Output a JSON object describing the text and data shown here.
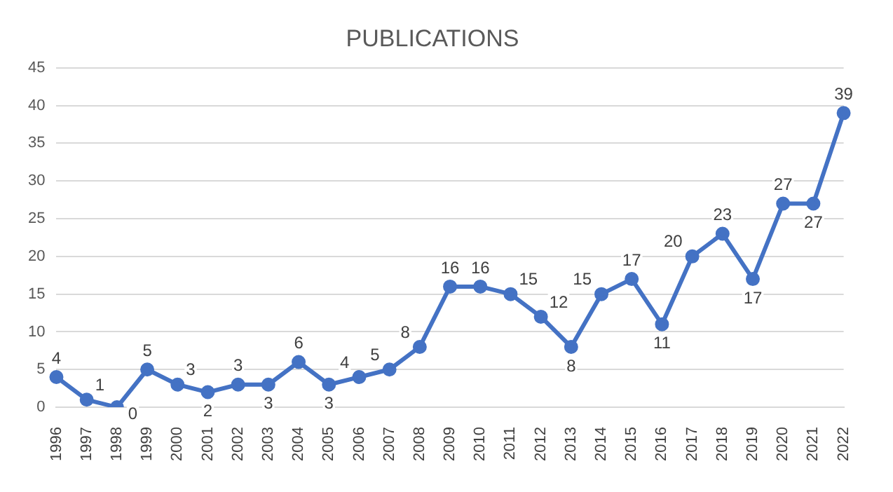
{
  "chart_data": {
    "type": "line",
    "title": "PUBLICATIONS",
    "categories": [
      "1996",
      "1997",
      "1998",
      "1999",
      "2000",
      "2001",
      "2002",
      "2003",
      "2004",
      "2005",
      "2006",
      "2007",
      "2008",
      "2009",
      "2010",
      "2011",
      "2012",
      "2013",
      "2014",
      "2015",
      "2016",
      "2017",
      "2018",
      "2019",
      "2020",
      "2021",
      "2022"
    ],
    "series": [
      {
        "color": "#4472c4",
        "values": [
          4,
          1,
          0,
          5,
          3,
          2,
          3,
          3,
          6,
          3,
          4,
          5,
          8,
          16,
          16,
          15,
          12,
          8,
          15,
          17,
          11,
          20,
          23,
          17,
          27,
          27,
          39
        ]
      }
    ],
    "ylim": [
      0,
      45
    ],
    "yticks": [
      0,
      5,
      10,
      15,
      20,
      25,
      30,
      35,
      40,
      45
    ],
    "grid": "y",
    "marker": "circle",
    "line_style": "solid",
    "data_labels": true
  }
}
